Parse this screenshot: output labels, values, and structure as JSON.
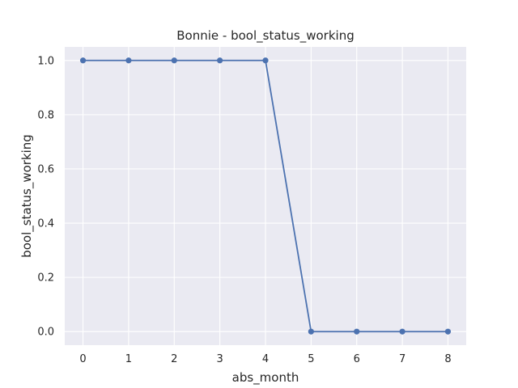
{
  "chart_data": {
    "type": "line",
    "title": "Bonnie - bool_status_working",
    "xlabel": "abs_month",
    "ylabel": "bool_status_working",
    "x": [
      0,
      1,
      2,
      3,
      4,
      5,
      6,
      7,
      8
    ],
    "series": [
      {
        "values": [
          1.0,
          1.0,
          1.0,
          1.0,
          1.0,
          0.0,
          0.0,
          0.0,
          0.0
        ],
        "color": "#4c72b0",
        "marker": "circle"
      }
    ],
    "xlim": [
      -0.4,
      8.4
    ],
    "ylim": [
      -0.05,
      1.05
    ],
    "xticks": [
      "0",
      "1",
      "2",
      "3",
      "4",
      "5",
      "6",
      "7",
      "8"
    ],
    "yticks": [
      "0.0",
      "0.2",
      "0.4",
      "0.6",
      "0.8",
      "1.0"
    ],
    "grid": true,
    "background_color": "#eaeaf2",
    "grid_color": "#ffffff"
  }
}
